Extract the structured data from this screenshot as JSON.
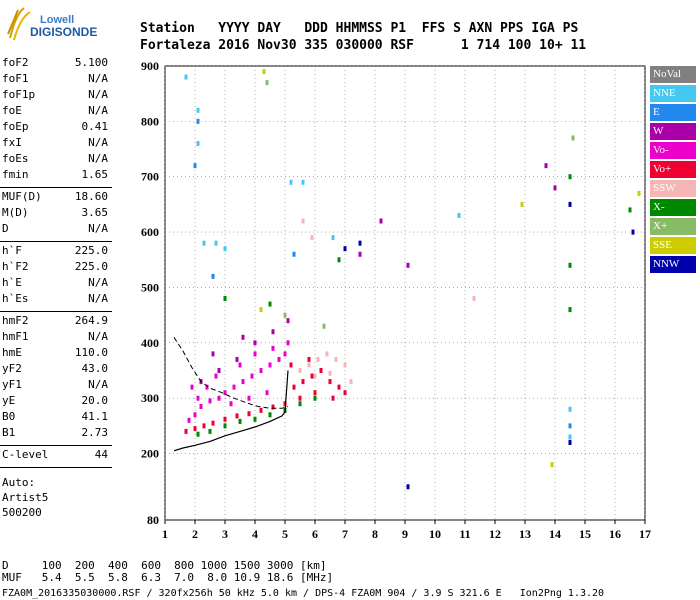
{
  "logo": {
    "line1": "Lowell",
    "line2": "DIGISONDE"
  },
  "header": {
    "line1": "Station   YYYY DAY   DDD HHMMSS P1  FFS S AXN PPS IGA PS",
    "line2": "Fortaleza 2016 Nov30 335 030000 RSF      1 714 100 10+ 11"
  },
  "params_group1": [
    {
      "name": "foF2",
      "value": "5.100"
    },
    {
      "name": "foF1",
      "value": "N/A"
    },
    {
      "name": "foF1p",
      "value": "N/A"
    },
    {
      "name": "foE",
      "value": "N/A"
    },
    {
      "name": "foEp",
      "value": "0.41"
    },
    {
      "name": "fxI",
      "value": "N/A"
    },
    {
      "name": "foEs",
      "value": "N/A"
    },
    {
      "name": "fmin",
      "value": "1.65"
    }
  ],
  "params_group2": [
    {
      "name": "MUF(D)",
      "value": "18.60"
    },
    {
      "name": "M(D)",
      "value": "3.65"
    },
    {
      "name": "D",
      "value": "N/A"
    }
  ],
  "params_group3": [
    {
      "name": "h`F",
      "value": "225.0"
    },
    {
      "name": "h`F2",
      "value": "225.0"
    },
    {
      "name": "h`E",
      "value": "N/A"
    },
    {
      "name": "h`Es",
      "value": "N/A"
    }
  ],
  "params_group4": [
    {
      "name": "hmF2",
      "value": "264.9"
    },
    {
      "name": "hmF1",
      "value": "N/A"
    },
    {
      "name": "hmE",
      "value": "110.0"
    },
    {
      "name": "yF2",
      "value": "43.0"
    },
    {
      "name": "yF1",
      "value": "N/A"
    },
    {
      "name": "yE",
      "value": "20.0"
    },
    {
      "name": "B0",
      "value": "41.1"
    },
    {
      "name": "B1",
      "value": "2.73"
    }
  ],
  "params_group5": [
    {
      "name": "C-level",
      "value": "44"
    }
  ],
  "auto": {
    "label": "Auto:",
    "program": "Artist5",
    "version": "500200"
  },
  "legend": [
    {
      "label": "NoVal",
      "color": "#808080"
    },
    {
      "label": "NNE",
      "color": "#44c8f0"
    },
    {
      "label": "E",
      "color": "#2288ee"
    },
    {
      "label": "W",
      "color": "#aa00aa"
    },
    {
      "label": "Vo-",
      "color": "#ee00cc"
    },
    {
      "label": "Vo+",
      "color": "#ee0033"
    },
    {
      "label": "SSW",
      "color": "#f7b6b6"
    },
    {
      "label": "X-",
      "color": "#008800"
    },
    {
      "label": "X+",
      "color": "#88bb66"
    },
    {
      "label": "SSE",
      "color": "#cccc00"
    },
    {
      "label": "NNW",
      "color": "#0000aa"
    }
  ],
  "footer": {
    "line1": "D     100  200  400  600  800 1000 1500 3000 [km]",
    "line2": "MUF   5.4  5.5  5.8  6.3  7.0  8.0 10.9 18.6 [MHz]",
    "file": "FZA0M_2016335030000.RSF / 320fx256h 50 kHz 5.0 km / DPS-4 FZA0M 904 / 3.9 S 321.6 E   Ion2Png 1.3.20"
  },
  "chart_data": {
    "type": "scatter",
    "xlim": [
      1,
      17
    ],
    "ylim": [
      80,
      900
    ],
    "x_ticks": [
      1,
      2,
      3,
      4,
      5,
      6,
      7,
      8,
      9,
      10,
      11,
      12,
      13,
      14,
      15,
      16,
      17
    ],
    "y_ticks": [
      80,
      200,
      300,
      400,
      500,
      600,
      700,
      800,
      900
    ],
    "grid": true,
    "legend_position": "right",
    "profile_solid": [
      [
        1.3,
        205
      ],
      [
        1.6,
        210
      ],
      [
        2.0,
        215
      ],
      [
        2.5,
        222
      ],
      [
        3.0,
        232
      ],
      [
        3.5,
        240
      ],
      [
        4.0,
        248
      ],
      [
        4.5,
        258
      ],
      [
        4.9,
        268
      ],
      [
        5.0,
        275
      ],
      [
        5.1,
        350
      ]
    ],
    "profile_dashed": [
      [
        1.3,
        410
      ],
      [
        1.6,
        385
      ],
      [
        1.9,
        355
      ],
      [
        2.2,
        330
      ],
      [
        2.5,
        318
      ],
      [
        2.9,
        310
      ],
      [
        3.3,
        300
      ],
      [
        3.7,
        292
      ],
      [
        4.1,
        285
      ],
      [
        4.5,
        282
      ],
      [
        4.9,
        282
      ],
      [
        5.1,
        285
      ]
    ],
    "series": [
      {
        "color": "#ee00cc",
        "points": [
          [
            1.8,
            260
          ],
          [
            2.0,
            270
          ],
          [
            2.2,
            285
          ],
          [
            2.5,
            295
          ],
          [
            2.8,
            300
          ],
          [
            3.0,
            310
          ],
          [
            3.3,
            320
          ],
          [
            3.6,
            330
          ],
          [
            3.9,
            340
          ],
          [
            4.2,
            350
          ],
          [
            4.5,
            360
          ],
          [
            4.8,
            370
          ],
          [
            5.0,
            380
          ],
          [
            2.1,
            300
          ],
          [
            2.4,
            320
          ],
          [
            3.2,
            290
          ],
          [
            3.8,
            300
          ],
          [
            4.4,
            310
          ],
          [
            1.9,
            320
          ],
          [
            2.7,
            340
          ],
          [
            3.5,
            360
          ],
          [
            4.6,
            390
          ],
          [
            5.1,
            400
          ],
          [
            4.0,
            380
          ]
        ]
      },
      {
        "color": "#ee0033",
        "points": [
          [
            1.7,
            240
          ],
          [
            2.0,
            245
          ],
          [
            2.3,
            250
          ],
          [
            2.6,
            255
          ],
          [
            3.0,
            262
          ],
          [
            3.4,
            268
          ],
          [
            3.8,
            272
          ],
          [
            4.2,
            278
          ],
          [
            4.6,
            284
          ],
          [
            5.0,
            290
          ],
          [
            5.3,
            320
          ],
          [
            5.6,
            330
          ],
          [
            5.9,
            340
          ],
          [
            6.2,
            350
          ],
          [
            6.5,
            330
          ],
          [
            6.8,
            320
          ],
          [
            5.5,
            300
          ],
          [
            6.0,
            310
          ],
          [
            6.6,
            300
          ],
          [
            7.0,
            310
          ],
          [
            5.2,
            360
          ],
          [
            5.8,
            370
          ]
        ]
      },
      {
        "color": "#008800",
        "points": [
          [
            2.1,
            235
          ],
          [
            2.5,
            240
          ],
          [
            3.0,
            250
          ],
          [
            3.5,
            258
          ],
          [
            4.0,
            262
          ],
          [
            4.5,
            270
          ],
          [
            5.0,
            278
          ],
          [
            5.5,
            290
          ],
          [
            6.0,
            300
          ],
          [
            3.0,
            480
          ],
          [
            4.5,
            470
          ],
          [
            6.8,
            550
          ],
          [
            14.5,
            700
          ],
          [
            14.5,
            540
          ],
          [
            14.5,
            460
          ],
          [
            16.5,
            640
          ]
        ]
      },
      {
        "color": "#f7b6b6",
        "points": [
          [
            5.5,
            350
          ],
          [
            5.8,
            360
          ],
          [
            6.1,
            370
          ],
          [
            6.4,
            380
          ],
          [
            6.7,
            370
          ],
          [
            7.0,
            360
          ],
          [
            6.0,
            340
          ],
          [
            6.5,
            345
          ],
          [
            7.2,
            330
          ],
          [
            5.6,
            620
          ],
          [
            5.9,
            590
          ],
          [
            11.3,
            480
          ]
        ]
      },
      {
        "color": "#aa00aa",
        "points": [
          [
            2.2,
            330
          ],
          [
            2.8,
            350
          ],
          [
            3.4,
            370
          ],
          [
            4.0,
            400
          ],
          [
            4.6,
            420
          ],
          [
            5.1,
            440
          ],
          [
            2.6,
            380
          ],
          [
            3.6,
            410
          ],
          [
            7.5,
            560
          ],
          [
            9.1,
            540
          ],
          [
            13.7,
            720
          ],
          [
            14.0,
            680
          ],
          [
            8.2,
            620
          ]
        ]
      },
      {
        "color": "#44c8f0",
        "points": [
          [
            1.7,
            880
          ],
          [
            2.1,
            820
          ],
          [
            2.1,
            760
          ],
          [
            2.3,
            580
          ],
          [
            2.7,
            580
          ],
          [
            3.0,
            570
          ],
          [
            5.2,
            690
          ],
          [
            5.6,
            690
          ],
          [
            6.6,
            590
          ],
          [
            10.8,
            630
          ],
          [
            14.5,
            280
          ],
          [
            14.5,
            230
          ]
        ]
      },
      {
        "color": "#2288ee",
        "points": [
          [
            2.1,
            800
          ],
          [
            2.0,
            720
          ],
          [
            2.6,
            520
          ],
          [
            5.3,
            560
          ],
          [
            14.5,
            250
          ]
        ]
      },
      {
        "color": "#cccc00",
        "points": [
          [
            4.3,
            890
          ],
          [
            4.2,
            460
          ],
          [
            12.9,
            650
          ],
          [
            13.9,
            180
          ],
          [
            16.8,
            670
          ],
          [
            16.6,
            600
          ]
        ]
      },
      {
        "color": "#0000aa",
        "points": [
          [
            7.0,
            570
          ],
          [
            7.5,
            580
          ],
          [
            9.1,
            140
          ],
          [
            14.5,
            650
          ],
          [
            14.5,
            220
          ],
          [
            16.6,
            600
          ]
        ]
      },
      {
        "color": "#88bb66",
        "points": [
          [
            4.4,
            870
          ],
          [
            5.0,
            450
          ],
          [
            6.3,
            430
          ],
          [
            14.6,
            770
          ]
        ]
      }
    ]
  }
}
